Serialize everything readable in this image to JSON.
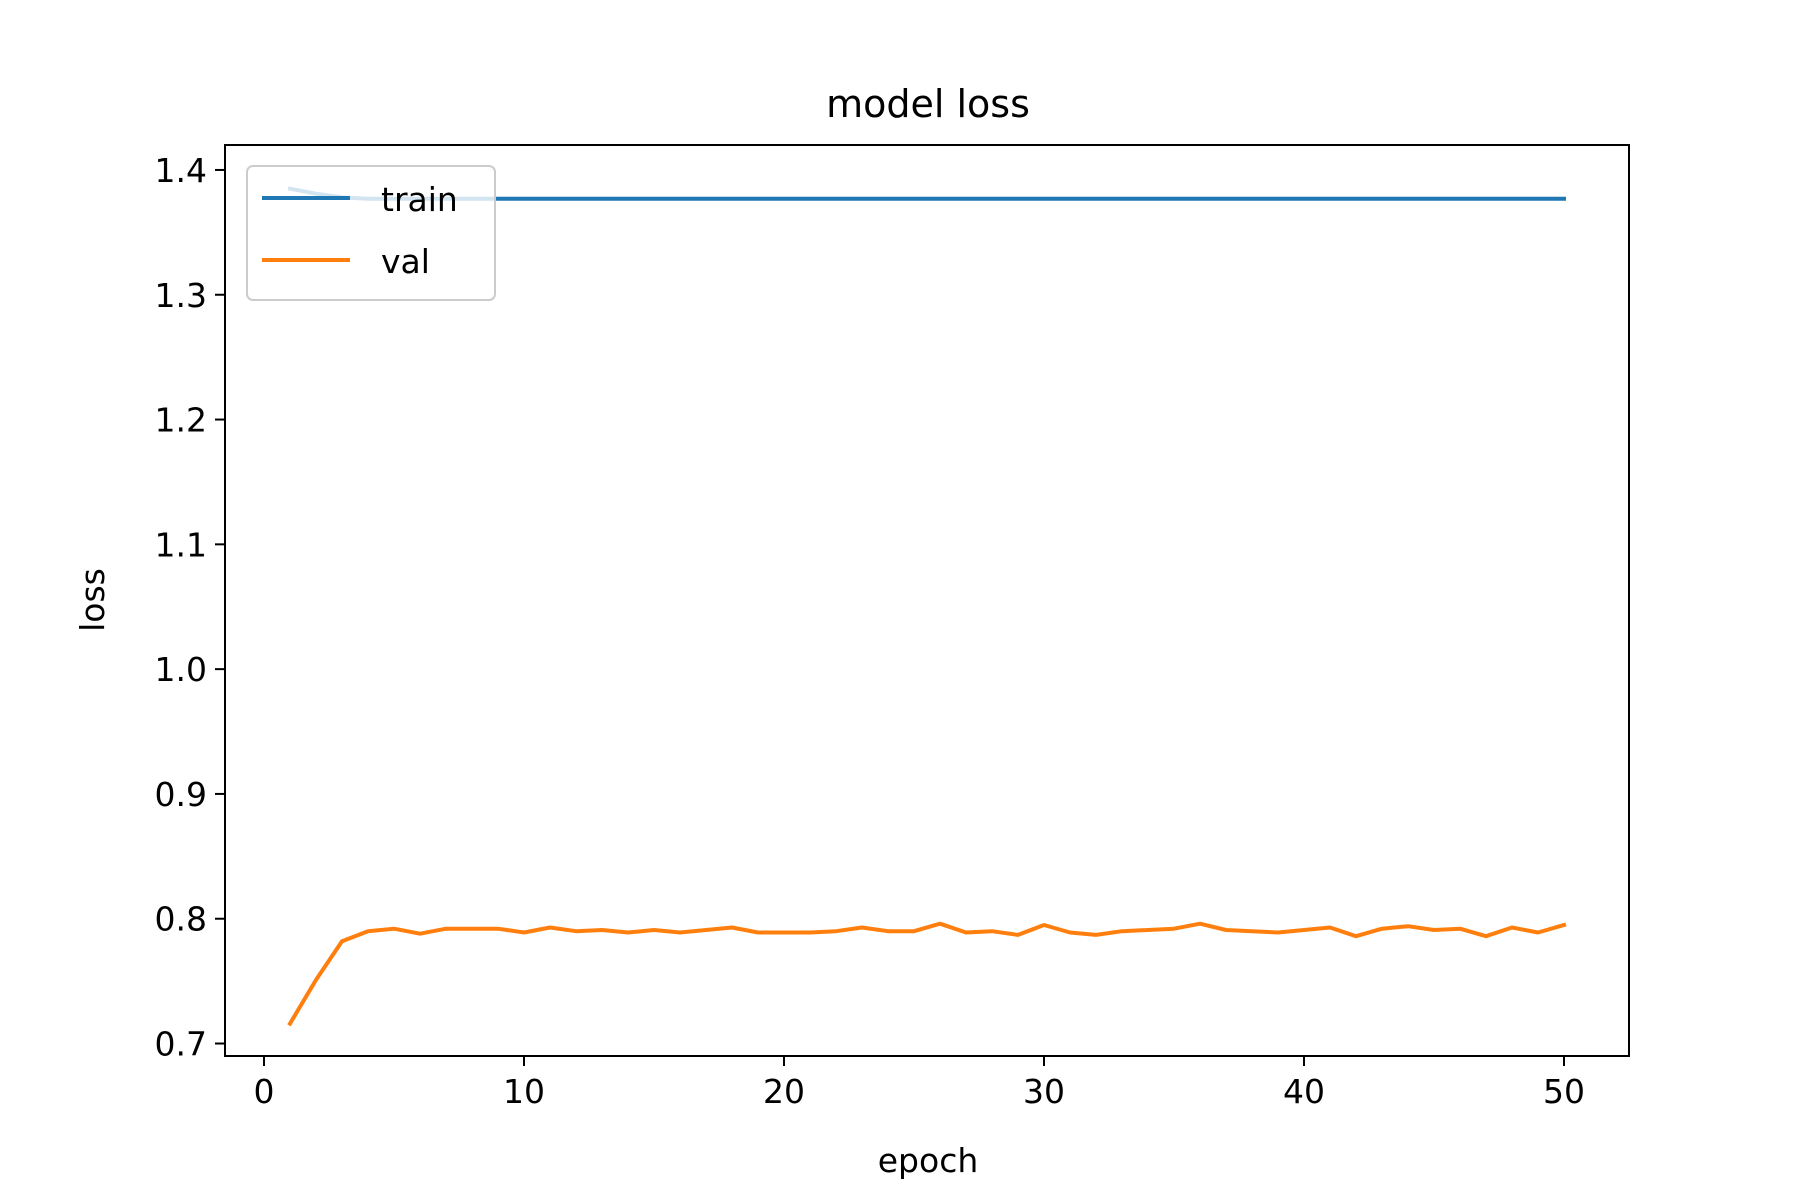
{
  "chart_data": {
    "type": "line",
    "title": "model loss",
    "xlabel": "epoch",
    "ylabel": "loss",
    "xlim": [
      -1.5,
      52.5
    ],
    "ylim": [
      0.69,
      1.42
    ],
    "xticks": [
      0,
      10,
      20,
      30,
      40,
      50
    ],
    "xtick_labels": [
      "0",
      "10",
      "20",
      "30",
      "40",
      "50"
    ],
    "yticks": [
      0.7,
      0.8,
      0.9,
      1.0,
      1.1,
      1.2,
      1.3,
      1.4
    ],
    "ytick_labels": [
      "0.7",
      "0.8",
      "0.9",
      "1.0",
      "1.1",
      "1.2",
      "1.3",
      "1.4"
    ],
    "grid": false,
    "legend_position": "top-left",
    "x": [
      1,
      2,
      3,
      4,
      5,
      6,
      7,
      8,
      9,
      10,
      11,
      12,
      13,
      14,
      15,
      16,
      17,
      18,
      19,
      20,
      21,
      22,
      23,
      24,
      25,
      26,
      27,
      28,
      29,
      30,
      31,
      32,
      33,
      34,
      35,
      36,
      37,
      38,
      39,
      40,
      41,
      42,
      43,
      44,
      45,
      46,
      47,
      48,
      49,
      50
    ],
    "series": [
      {
        "name": "train",
        "color": "#1f77b4",
        "values": [
          1.385,
          1.381,
          1.378,
          1.377,
          1.377,
          1.377,
          1.377,
          1.377,
          1.377,
          1.377,
          1.377,
          1.377,
          1.377,
          1.377,
          1.377,
          1.377,
          1.377,
          1.377,
          1.377,
          1.377,
          1.377,
          1.377,
          1.377,
          1.377,
          1.377,
          1.377,
          1.377,
          1.377,
          1.377,
          1.377,
          1.377,
          1.377,
          1.377,
          1.377,
          1.377,
          1.377,
          1.377,
          1.377,
          1.377,
          1.377,
          1.377,
          1.377,
          1.377,
          1.377,
          1.377,
          1.377,
          1.377,
          1.377,
          1.377,
          1.377
        ]
      },
      {
        "name": "val",
        "color": "#ff7f0e",
        "values": [
          0.716,
          0.751,
          0.782,
          0.79,
          0.792,
          0.788,
          0.792,
          0.792,
          0.792,
          0.789,
          0.793,
          0.79,
          0.791,
          0.789,
          0.791,
          0.789,
          0.791,
          0.793,
          0.789,
          0.789,
          0.789,
          0.79,
          0.793,
          0.79,
          0.79,
          0.796,
          0.789,
          0.79,
          0.787,
          0.795,
          0.789,
          0.787,
          0.79,
          0.791,
          0.792,
          0.796,
          0.791,
          0.79,
          0.789,
          0.791,
          0.793,
          0.786,
          0.792,
          0.794,
          0.791,
          0.792,
          0.786,
          0.793,
          0.789,
          0.795
        ]
      }
    ]
  }
}
